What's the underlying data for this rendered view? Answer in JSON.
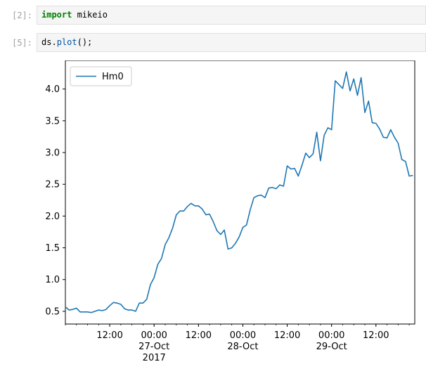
{
  "cells": [
    {
      "prompt": "[2]:",
      "keyword": "import",
      "code": " mikeio"
    },
    {
      "prompt": "[5]:",
      "object": "ds.",
      "method": "plot",
      "rest": "();"
    }
  ],
  "chart_data": {
    "type": "line",
    "legend_placement": "top-left",
    "grid": false,
    "ylim": [
      0.3,
      4.45
    ],
    "xlim": [
      "2017-10-26 00:00",
      "2017-10-29 22:30"
    ],
    "y_ticks": [
      "0.5",
      "1.0",
      "1.5",
      "2.0",
      "2.5",
      "3.0",
      "3.5",
      "4.0"
    ],
    "x_ticks": [
      {
        "time": "2017-10-26 12:00",
        "lines": [
          "12:00"
        ]
      },
      {
        "time": "2017-10-27 00:00",
        "lines": [
          "00:00",
          "27-Oct",
          "2017"
        ]
      },
      {
        "time": "2017-10-27 12:00",
        "lines": [
          "12:00"
        ]
      },
      {
        "time": "2017-10-28 00:00",
        "lines": [
          "00:00",
          "28-Oct"
        ]
      },
      {
        "time": "2017-10-28 12:00",
        "lines": [
          "12:00"
        ]
      },
      {
        "time": "2017-10-29 00:00",
        "lines": [
          "00:00",
          "29-Oct"
        ]
      },
      {
        "time": "2017-10-29 12:00",
        "lines": [
          "12:00"
        ]
      }
    ],
    "series": [
      {
        "name": "Hm0",
        "color": "#1f77b4",
        "x": [
          "2017-10-26 00:00",
          "2017-10-26 01:00",
          "2017-10-26 02:00",
          "2017-10-26 03:00",
          "2017-10-26 04:00",
          "2017-10-26 05:00",
          "2017-10-26 06:00",
          "2017-10-26 07:00",
          "2017-10-26 08:00",
          "2017-10-26 09:00",
          "2017-10-26 10:00",
          "2017-10-26 11:00",
          "2017-10-26 12:00",
          "2017-10-26 13:00",
          "2017-10-26 14:00",
          "2017-10-26 15:00",
          "2017-10-26 16:00",
          "2017-10-26 17:00",
          "2017-10-26 18:00",
          "2017-10-26 19:00",
          "2017-10-26 20:00",
          "2017-10-26 21:00",
          "2017-10-26 22:00",
          "2017-10-26 23:00",
          "2017-10-27 00:00",
          "2017-10-27 01:00",
          "2017-10-27 02:00",
          "2017-10-27 03:00",
          "2017-10-27 04:00",
          "2017-10-27 05:00",
          "2017-10-27 06:00",
          "2017-10-27 07:00",
          "2017-10-27 08:00",
          "2017-10-27 09:00",
          "2017-10-27 10:00",
          "2017-10-27 11:00",
          "2017-10-27 12:00",
          "2017-10-27 13:00",
          "2017-10-27 14:00",
          "2017-10-27 15:00",
          "2017-10-27 16:00",
          "2017-10-27 17:00",
          "2017-10-27 18:00",
          "2017-10-27 19:00",
          "2017-10-27 20:00",
          "2017-10-27 21:00",
          "2017-10-27 22:00",
          "2017-10-27 23:00",
          "2017-10-28 00:00",
          "2017-10-28 01:00",
          "2017-10-28 02:00",
          "2017-10-28 03:00",
          "2017-10-28 04:00",
          "2017-10-28 05:00",
          "2017-10-28 06:00",
          "2017-10-28 07:00",
          "2017-10-28 08:00",
          "2017-10-28 09:00",
          "2017-10-28 10:00",
          "2017-10-28 11:00",
          "2017-10-28 12:00",
          "2017-10-28 13:00",
          "2017-10-28 14:00",
          "2017-10-28 15:00",
          "2017-10-28 16:00",
          "2017-10-28 17:00",
          "2017-10-28 18:00",
          "2017-10-28 19:00",
          "2017-10-28 20:00",
          "2017-10-28 21:00",
          "2017-10-28 22:00",
          "2017-10-28 23:00",
          "2017-10-29 00:00",
          "2017-10-29 01:00",
          "2017-10-29 02:00",
          "2017-10-29 03:00",
          "2017-10-29 04:00",
          "2017-10-29 05:00",
          "2017-10-29 06:00",
          "2017-10-29 07:00",
          "2017-10-29 08:00",
          "2017-10-29 09:00",
          "2017-10-29 10:00",
          "2017-10-29 11:00",
          "2017-10-29 12:00",
          "2017-10-29 13:00",
          "2017-10-29 14:00",
          "2017-10-29 15:00",
          "2017-10-29 16:00",
          "2017-10-29 17:00",
          "2017-10-29 18:00",
          "2017-10-29 19:00",
          "2017-10-29 20:00",
          "2017-10-29 21:00",
          "2017-10-29 22:00"
        ],
        "y": [
          0.57,
          0.52,
          0.53,
          0.55,
          0.49,
          0.49,
          0.49,
          0.48,
          0.5,
          0.52,
          0.51,
          0.53,
          0.59,
          0.64,
          0.63,
          0.61,
          0.54,
          0.52,
          0.52,
          0.5,
          0.63,
          0.63,
          0.69,
          0.92,
          1.03,
          1.24,
          1.33,
          1.55,
          1.66,
          1.81,
          2.02,
          2.08,
          2.08,
          2.15,
          2.2,
          2.16,
          2.16,
          2.11,
          2.02,
          2.03,
          1.91,
          1.77,
          1.71,
          1.78,
          1.48,
          1.5,
          1.57,
          1.67,
          1.82,
          1.86,
          2.1,
          2.29,
          2.32,
          2.33,
          2.29,
          2.44,
          2.45,
          2.43,
          2.49,
          2.47,
          2.79,
          2.74,
          2.75,
          2.63,
          2.8,
          2.99,
          2.92,
          2.98,
          3.32,
          2.87,
          3.27,
          3.39,
          3.36,
          4.13,
          4.07,
          4.01,
          4.27,
          3.97,
          4.16,
          3.9,
          4.18,
          3.63,
          3.81,
          3.47,
          3.46,
          3.37,
          3.24,
          3.23,
          3.36,
          3.24,
          3.15,
          2.89,
          2.86,
          2.63,
          2.64
        ]
      }
    ]
  }
}
